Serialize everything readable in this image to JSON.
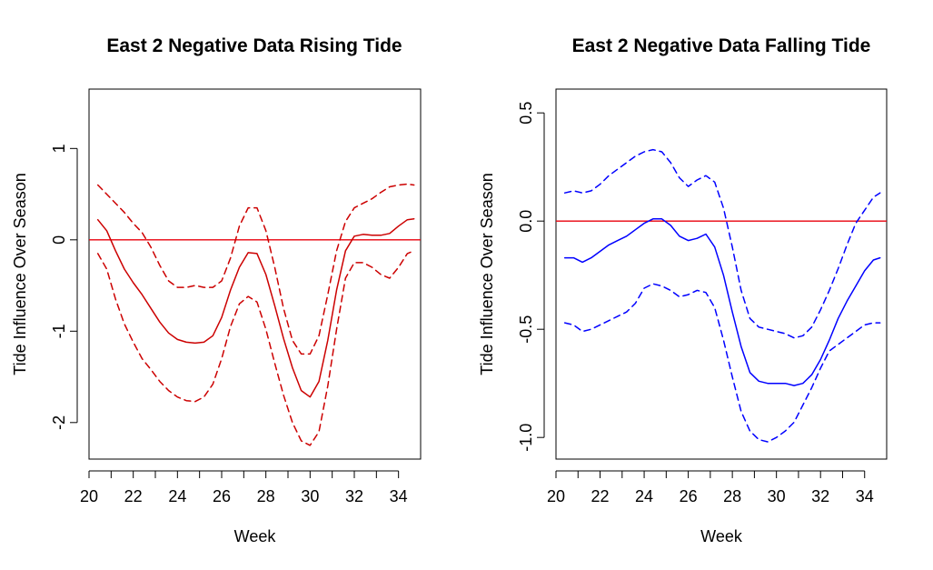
{
  "chart_data": [
    {
      "type": "line",
      "title": "East 2 Negative Data Rising Tide",
      "xlabel": "Week",
      "ylabel": "Tide Influence Over Season",
      "xlim": [
        20,
        35
      ],
      "ylim": [
        -2.4,
        1.65
      ],
      "xticks": [
        20,
        22,
        24,
        26,
        28,
        30,
        32,
        34
      ],
      "yticks": [
        -2,
        -1,
        0,
        1
      ],
      "ytick_labels": [
        "-2",
        "-1",
        "0",
        "1"
      ],
      "reference_line": {
        "y": 0,
        "color": "#e8000b"
      },
      "grid": false,
      "legend": "none",
      "series": [
        {
          "role": "estimate",
          "style": "solid",
          "color": "#cc0000",
          "x": [
            20.4,
            20.8,
            21.2,
            21.6,
            22.0,
            22.4,
            22.8,
            23.2,
            23.6,
            24.0,
            24.4,
            24.8,
            25.2,
            25.6,
            26.0,
            26.4,
            26.8,
            27.2,
            27.6,
            28.0,
            28.4,
            28.8,
            29.2,
            29.6,
            30.0,
            30.4,
            30.8,
            31.2,
            31.6,
            32.0,
            32.4,
            32.8,
            33.2,
            33.6,
            34.0,
            34.4,
            34.7
          ],
          "y": [
            0.22,
            0.1,
            -0.12,
            -0.32,
            -0.47,
            -0.6,
            -0.75,
            -0.9,
            -1.02,
            -1.09,
            -1.12,
            -1.13,
            -1.12,
            -1.05,
            -0.85,
            -0.55,
            -0.3,
            -0.14,
            -0.15,
            -0.38,
            -0.72,
            -1.08,
            -1.4,
            -1.65,
            -1.72,
            -1.55,
            -1.1,
            -0.55,
            -0.12,
            0.04,
            0.06,
            0.05,
            0.05,
            0.07,
            0.15,
            0.22,
            0.23
          ]
        },
        {
          "role": "upper-bound",
          "style": "dashed",
          "color": "#cc0000",
          "x": [
            20.4,
            20.8,
            21.2,
            21.6,
            22.0,
            22.4,
            22.8,
            23.2,
            23.6,
            24.0,
            24.4,
            24.8,
            25.2,
            25.6,
            26.0,
            26.4,
            26.8,
            27.2,
            27.6,
            28.0,
            28.4,
            28.8,
            29.2,
            29.6,
            30.0,
            30.4,
            30.8,
            31.2,
            31.6,
            32.0,
            32.4,
            32.8,
            33.2,
            33.6,
            34.0,
            34.4,
            34.7
          ],
          "y": [
            0.6,
            0.5,
            0.4,
            0.3,
            0.18,
            0.08,
            -0.08,
            -0.28,
            -0.45,
            -0.52,
            -0.52,
            -0.5,
            -0.52,
            -0.52,
            -0.45,
            -0.2,
            0.15,
            0.35,
            0.35,
            0.1,
            -0.3,
            -0.75,
            -1.1,
            -1.25,
            -1.25,
            -1.05,
            -0.6,
            -0.12,
            0.2,
            0.35,
            0.4,
            0.45,
            0.52,
            0.58,
            0.6,
            0.61,
            0.6
          ]
        },
        {
          "role": "lower-bound",
          "style": "dashed",
          "color": "#cc0000",
          "x": [
            20.4,
            20.8,
            21.2,
            21.6,
            22.0,
            22.4,
            22.8,
            23.2,
            23.6,
            24.0,
            24.4,
            24.8,
            25.2,
            25.6,
            26.0,
            26.4,
            26.8,
            27.2,
            27.6,
            28.0,
            28.4,
            28.8,
            29.2,
            29.6,
            30.0,
            30.4,
            30.8,
            31.2,
            31.6,
            32.0,
            32.4,
            32.8,
            33.2,
            33.6,
            34.0,
            34.4,
            34.7
          ],
          "y": [
            -0.15,
            -0.32,
            -0.65,
            -0.92,
            -1.12,
            -1.3,
            -1.42,
            -1.55,
            -1.65,
            -1.72,
            -1.76,
            -1.77,
            -1.72,
            -1.58,
            -1.3,
            -0.95,
            -0.7,
            -0.62,
            -0.68,
            -0.98,
            -1.35,
            -1.7,
            -2.0,
            -2.2,
            -2.25,
            -2.1,
            -1.6,
            -0.98,
            -0.42,
            -0.25,
            -0.25,
            -0.3,
            -0.38,
            -0.42,
            -0.3,
            -0.15,
            -0.12
          ]
        }
      ]
    },
    {
      "type": "line",
      "title": "East 2 Negative Data Falling Tide",
      "xlabel": "Week",
      "ylabel": "Tide Influence Over Season",
      "xlim": [
        20,
        35
      ],
      "ylim": [
        -1.1,
        0.61
      ],
      "xticks": [
        20,
        22,
        24,
        26,
        28,
        30,
        32,
        34
      ],
      "yticks": [
        -1.0,
        -0.5,
        0.0,
        0.5
      ],
      "ytick_labels": [
        "-1.0",
        "-0.5",
        "0.0",
        "0.5"
      ],
      "reference_line": {
        "y": 0,
        "color": "#e8000b"
      },
      "grid": false,
      "legend": "none",
      "series": [
        {
          "role": "estimate",
          "style": "solid",
          "color": "#0000ff",
          "x": [
            20.4,
            20.8,
            21.2,
            21.6,
            22.0,
            22.4,
            22.8,
            23.2,
            23.6,
            24.0,
            24.4,
            24.8,
            25.2,
            25.6,
            26.0,
            26.4,
            26.8,
            27.2,
            27.6,
            28.0,
            28.4,
            28.8,
            29.2,
            29.6,
            30.0,
            30.4,
            30.8,
            31.2,
            31.6,
            32.0,
            32.4,
            32.8,
            33.2,
            33.6,
            34.0,
            34.4,
            34.7
          ],
          "y": [
            -0.17,
            -0.17,
            -0.19,
            -0.17,
            -0.14,
            -0.11,
            -0.09,
            -0.07,
            -0.04,
            -0.01,
            0.01,
            0.01,
            -0.02,
            -0.07,
            -0.09,
            -0.08,
            -0.06,
            -0.12,
            -0.25,
            -0.42,
            -0.58,
            -0.7,
            -0.74,
            -0.75,
            -0.75,
            -0.75,
            -0.76,
            -0.75,
            -0.71,
            -0.64,
            -0.55,
            -0.45,
            -0.37,
            -0.3,
            -0.23,
            -0.18,
            -0.17
          ]
        },
        {
          "role": "upper-bound",
          "style": "dashed",
          "color": "#0000ff",
          "x": [
            20.4,
            20.8,
            21.2,
            21.6,
            22.0,
            22.4,
            22.8,
            23.2,
            23.6,
            24.0,
            24.4,
            24.8,
            25.2,
            25.6,
            26.0,
            26.4,
            26.8,
            27.2,
            27.6,
            28.0,
            28.4,
            28.8,
            29.2,
            29.6,
            30.0,
            30.4,
            30.8,
            31.2,
            31.6,
            32.0,
            32.4,
            32.8,
            33.2,
            33.6,
            34.0,
            34.4,
            34.7
          ],
          "y": [
            0.13,
            0.14,
            0.13,
            0.14,
            0.17,
            0.21,
            0.24,
            0.27,
            0.3,
            0.32,
            0.33,
            0.32,
            0.27,
            0.2,
            0.16,
            0.19,
            0.21,
            0.18,
            0.06,
            -0.12,
            -0.32,
            -0.45,
            -0.49,
            -0.5,
            -0.51,
            -0.52,
            -0.54,
            -0.53,
            -0.49,
            -0.41,
            -0.32,
            -0.22,
            -0.11,
            -0.01,
            0.05,
            0.11,
            0.13
          ]
        },
        {
          "role": "lower-bound",
          "style": "dashed",
          "color": "#0000ff",
          "x": [
            20.4,
            20.8,
            21.2,
            21.6,
            22.0,
            22.4,
            22.8,
            23.2,
            23.6,
            24.0,
            24.4,
            24.8,
            25.2,
            25.6,
            26.0,
            26.4,
            26.8,
            27.2,
            27.6,
            28.0,
            28.4,
            28.8,
            29.2,
            29.6,
            30.0,
            30.4,
            30.8,
            31.2,
            31.6,
            32.0,
            32.4,
            32.8,
            33.2,
            33.6,
            34.0,
            34.4,
            34.7
          ],
          "y": [
            -0.47,
            -0.48,
            -0.51,
            -0.5,
            -0.48,
            -0.46,
            -0.44,
            -0.42,
            -0.38,
            -0.31,
            -0.29,
            -0.3,
            -0.32,
            -0.35,
            -0.34,
            -0.32,
            -0.33,
            -0.4,
            -0.55,
            -0.72,
            -0.88,
            -0.97,
            -1.01,
            -1.02,
            -1.0,
            -0.97,
            -0.93,
            -0.85,
            -0.77,
            -0.68,
            -0.6,
            -0.57,
            -0.54,
            -0.51,
            -0.48,
            -0.47,
            -0.47
          ]
        }
      ]
    }
  ]
}
